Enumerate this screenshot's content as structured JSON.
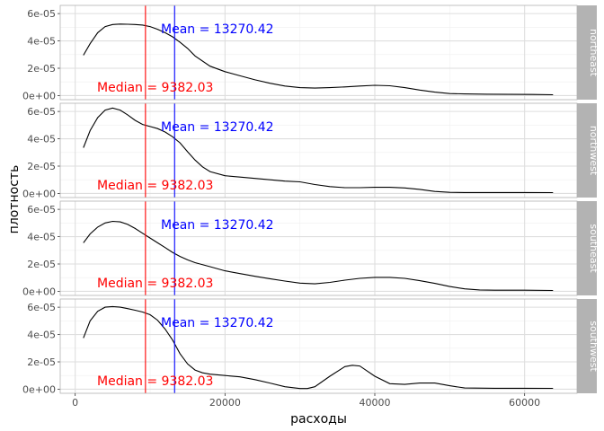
{
  "chart_data": {
    "type": "line",
    "xlabel": "расходы",
    "ylabel": "плотность",
    "xlim": [
      -2000,
      67000
    ],
    "ylim": [
      -3e-06,
      6.6e-05
    ],
    "x_ticks": [
      0,
      20000,
      40000,
      60000
    ],
    "x_tick_labels": [
      "0",
      "20000",
      "40000",
      "60000"
    ],
    "y_ticks": [
      0,
      2e-05,
      4e-05,
      6e-05
    ],
    "y_tick_labels": [
      "0e+00",
      "2e-05",
      "4e-05",
      "6e-05"
    ],
    "grid": true,
    "vlines": [
      {
        "label": "Median = 9382.03",
        "x": 9382.03,
        "color": "#ff0000"
      },
      {
        "label": "Mean = 13270.42",
        "x": 13270.42,
        "color": "#0000ff"
      }
    ],
    "facets": [
      {
        "name": "northeast",
        "x": [
          1100,
          2000,
          3000,
          4000,
          5000,
          6000,
          7000,
          8000,
          9000,
          10000,
          11000,
          12000,
          13000,
          14000,
          15000,
          16000,
          18000,
          20000,
          22000,
          24000,
          26000,
          28000,
          30000,
          32000,
          34000,
          36000,
          38000,
          40000,
          42000,
          44000,
          46000,
          48000,
          50000,
          52000,
          55000,
          58000,
          61000,
          63800
        ],
        "y": [
          2.95e-05,
          3.8e-05,
          4.6e-05,
          5.05e-05,
          5.2e-05,
          5.23e-05,
          5.22e-05,
          5.2e-05,
          5.16e-05,
          5.05e-05,
          4.85e-05,
          4.6e-05,
          4.3e-05,
          3.9e-05,
          3.45e-05,
          2.9e-05,
          2.15e-05,
          1.75e-05,
          1.45e-05,
          1.15e-05,
          9e-06,
          7e-06,
          5.8e-06,
          5.5e-06,
          5.8e-06,
          6.3e-06,
          7e-06,
          7.5e-06,
          7.2e-06,
          5.8e-06,
          4e-06,
          2.5e-06,
          1.5e-06,
          1.2e-06,
          1e-06,
          9e-07,
          8e-07,
          6e-07
        ]
      },
      {
        "name": "northwest",
        "x": [
          1100,
          2000,
          3000,
          4000,
          5000,
          6000,
          7000,
          8000,
          9000,
          10000,
          11000,
          12000,
          13000,
          14000,
          15000,
          16000,
          17000,
          18000,
          20000,
          22000,
          24000,
          26000,
          28000,
          30000,
          32000,
          34000,
          36000,
          38000,
          40000,
          42000,
          44000,
          46000,
          48000,
          50000,
          52000,
          56000,
          60000,
          63800
        ],
        "y": [
          3.35e-05,
          4.6e-05,
          5.55e-05,
          6.1e-05,
          6.25e-05,
          6.1e-05,
          5.75e-05,
          5.35e-05,
          5.05e-05,
          4.9e-05,
          4.75e-05,
          4.5e-05,
          4.15e-05,
          3.7e-05,
          3.05e-05,
          2.45e-05,
          1.95e-05,
          1.6e-05,
          1.3e-05,
          1.2e-05,
          1.1e-05,
          1e-05,
          9e-06,
          8.5e-06,
          6.5e-06,
          5e-06,
          4.2e-06,
          4.2e-06,
          4.5e-06,
          4.5e-06,
          4e-06,
          3e-06,
          1.5e-06,
          8e-07,
          7e-07,
          7e-07,
          7e-07,
          6e-07
        ]
      },
      {
        "name": "southeast",
        "x": [
          1100,
          2000,
          3000,
          4000,
          5000,
          6000,
          7000,
          8000,
          9000,
          10000,
          11000,
          12000,
          13000,
          14000,
          15000,
          16000,
          18000,
          20000,
          22000,
          24000,
          26000,
          28000,
          30000,
          32000,
          34000,
          36000,
          38000,
          40000,
          42000,
          44000,
          46000,
          48000,
          50000,
          52000,
          54000,
          56000,
          60000,
          63800
        ],
        "y": [
          3.55e-05,
          4.2e-05,
          4.7e-05,
          5e-05,
          5.12e-05,
          5.08e-05,
          4.9e-05,
          4.6e-05,
          4.25e-05,
          3.9e-05,
          3.55e-05,
          3.2e-05,
          2.85e-05,
          2.55e-05,
          2.3e-05,
          2.1e-05,
          1.8e-05,
          1.5e-05,
          1.3e-05,
          1.1e-05,
          9.2e-06,
          7.5e-06,
          6e-06,
          5.5e-06,
          6.5e-06,
          8.2e-06,
          9.5e-06,
          1.02e-05,
          1.02e-05,
          9.5e-06,
          7.8e-06,
          5.8e-06,
          3.5e-06,
          1.8e-06,
          1e-06,
          8e-07,
          8e-07,
          6e-07
        ]
      },
      {
        "name": "southwest",
        "x": [
          1100,
          2000,
          3000,
          4000,
          5000,
          6000,
          7000,
          8000,
          9000,
          10000,
          11000,
          12000,
          13000,
          14000,
          15000,
          16000,
          17000,
          18000,
          20000,
          22000,
          24000,
          26000,
          28000,
          30000,
          31000,
          32000,
          34000,
          36000,
          37000,
          38000,
          40000,
          42000,
          44000,
          46000,
          48000,
          50000,
          52000,
          56000,
          60000,
          63800
        ],
        "y": [
          3.75e-05,
          5e-05,
          5.7e-05,
          6e-05,
          6.05e-05,
          6e-05,
          5.9e-05,
          5.78e-05,
          5.65e-05,
          5.45e-05,
          5.05e-05,
          4.4e-05,
          3.6e-05,
          2.6e-05,
          1.85e-05,
          1.4e-05,
          1.2e-05,
          1.1e-05,
          1e-05,
          9e-06,
          7e-06,
          4.5e-06,
          1.8e-06,
          5e-07,
          5e-07,
          1.8e-06,
          9.5e-06,
          1.65e-05,
          1.75e-05,
          1.7e-05,
          9.5e-06,
          4e-06,
          3.5e-06,
          4.5e-06,
          4.5e-06,
          2.5e-06,
          9e-07,
          7e-07,
          7e-07,
          6e-07
        ]
      }
    ]
  },
  "colors": {
    "panel_background": "#ffffff",
    "panel_border": "#b3b3b3",
    "grid_major": "#dedede",
    "grid_minor": "#efefef",
    "strip_background": "#b3b3b3",
    "strip_text": "#ffffff",
    "density_line": "#000000",
    "median": "#ff0000",
    "mean": "#0000ff"
  }
}
